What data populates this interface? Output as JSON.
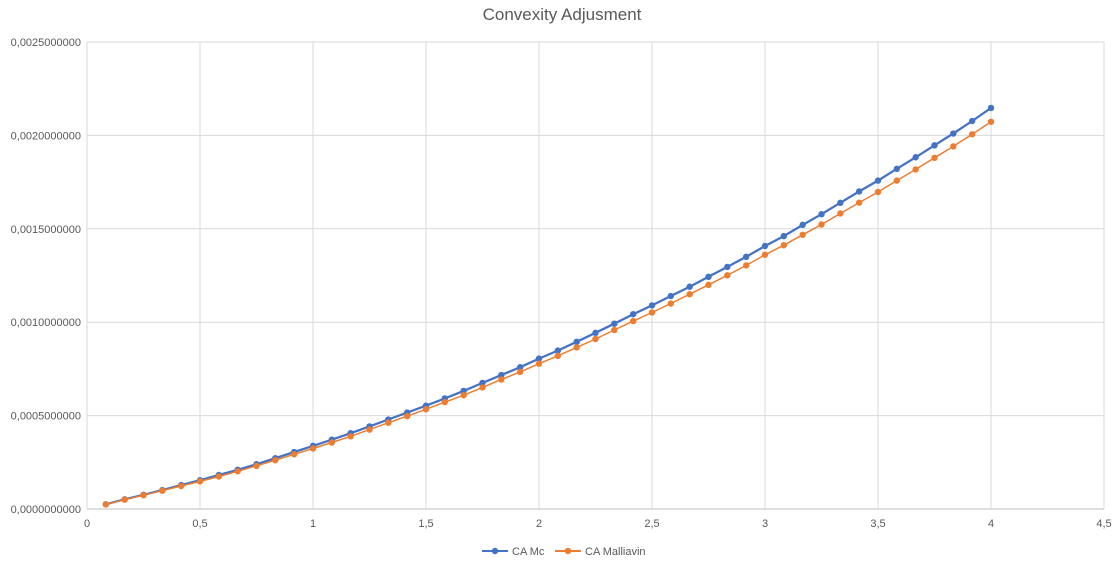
{
  "chart_data": {
    "type": "line",
    "title": "Convexity Adjusment",
    "xlabel": "",
    "ylabel": "",
    "xlim": [
      0,
      4.5
    ],
    "ylim": [
      0,
      0.0025
    ],
    "x_ticks": [
      "0",
      "0,5",
      "1",
      "1,5",
      "2",
      "2,5",
      "3",
      "3,5",
      "4",
      "4,5"
    ],
    "y_ticks": [
      "0,0000000000",
      "0,0005000000",
      "0,0010000000",
      "0,0015000000",
      "0,0020000000",
      "0,0025000000"
    ],
    "x_tick_values": [
      0,
      0.5,
      1,
      1.5,
      2,
      2.5,
      3,
      3.5,
      4,
      4.5
    ],
    "y_tick_values": [
      0,
      0.0005,
      0.001,
      0.0015,
      0.002,
      0.0025
    ],
    "grid": true,
    "legend_position": "bottom",
    "x": [
      0.0833,
      0.1667,
      0.25,
      0.3333,
      0.4167,
      0.5,
      0.5833,
      0.6667,
      0.75,
      0.8333,
      0.9167,
      1.0,
      1.0833,
      1.1667,
      1.25,
      1.3333,
      1.4167,
      1.5,
      1.5833,
      1.6667,
      1.75,
      1.8333,
      1.9167,
      2.0,
      2.0833,
      2.1667,
      2.25,
      2.3333,
      2.4167,
      2.5,
      2.5833,
      2.6667,
      2.75,
      2.8333,
      2.9167,
      3.0,
      3.0833,
      3.1667,
      3.25,
      3.3333,
      3.4167,
      3.5,
      3.5833,
      3.6667,
      3.75,
      3.8333,
      3.9167,
      4.0
    ],
    "series": [
      {
        "name": "CA Mc",
        "color": "#4472c4",
        "values": [
          2.5e-05,
          5.2e-05,
          7.6e-05,
          0.000101,
          0.000128,
          0.000154,
          0.000182,
          0.00021,
          0.00024,
          0.000272,
          0.000305,
          0.000338,
          0.000371,
          0.000406,
          0.000442,
          0.000479,
          0.000516,
          0.000553,
          0.000592,
          0.000632,
          0.000675,
          0.000717,
          0.000759,
          0.000805,
          0.000848,
          0.000895,
          0.000943,
          0.000992,
          0.001043,
          0.00109,
          0.00114,
          0.00119,
          0.001243,
          0.001296,
          0.00135,
          0.001408,
          0.001461,
          0.001521,
          0.001578,
          0.001639,
          0.0017,
          0.001758,
          0.001821,
          0.001883,
          0.001947,
          0.00201,
          0.002077,
          0.002147
        ]
      },
      {
        "name": "CA Malliavin",
        "color": "#ed7d31",
        "values": [
          2.5e-05,
          5e-05,
          7.4e-05,
          9.8e-05,
          0.000123,
          0.000148,
          0.000174,
          0.000202,
          0.000231,
          0.000261,
          0.000293,
          0.000324,
          0.000356,
          0.000389,
          0.000425,
          0.000462,
          0.000497,
          0.000534,
          0.000572,
          0.000609,
          0.000651,
          0.000693,
          0.000734,
          0.000778,
          0.00082,
          0.000865,
          0.00091,
          0.000958,
          0.001006,
          0.001052,
          0.0011,
          0.00115,
          0.0012,
          0.001251,
          0.001304,
          0.001361,
          0.001412,
          0.001468,
          0.001523,
          0.001582,
          0.00164,
          0.001697,
          0.001758,
          0.001818,
          0.00188,
          0.001941,
          0.002006,
          0.002073
        ]
      }
    ]
  }
}
